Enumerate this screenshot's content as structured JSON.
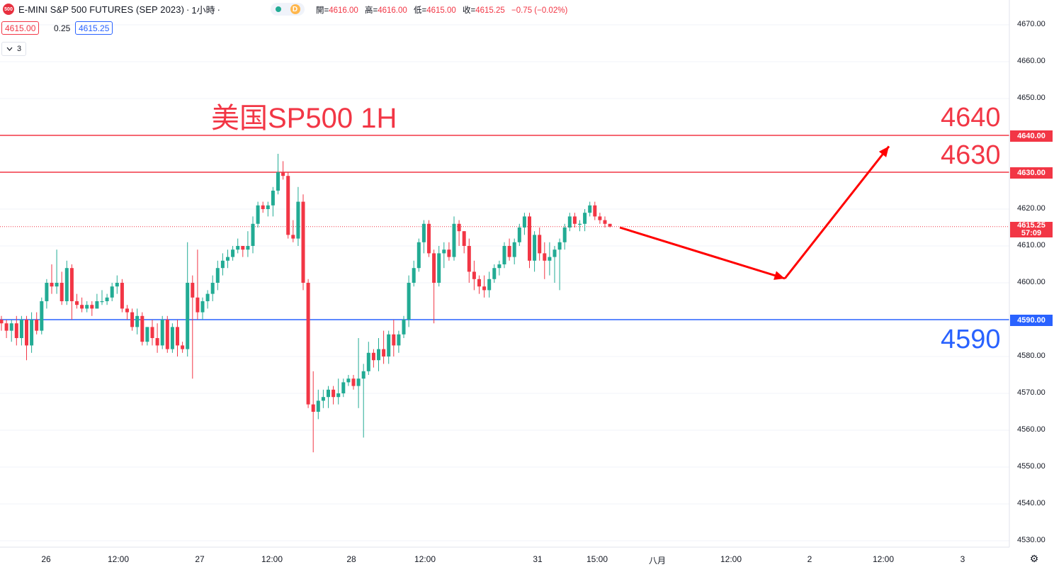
{
  "header": {
    "logo_text": "500",
    "symbol": "E-MINI S&P 500 FUTURES (SEP 2023)",
    "separator": "·",
    "interval": "1小時",
    "separator2": "·",
    "session_badge": "D",
    "ohlc": {
      "open_label": "開=",
      "open": "4616.00",
      "high_label": "高=",
      "high": "4616.00",
      "low_label": "低=",
      "low": "4615.00",
      "close_label": "收=",
      "close": "4615.25",
      "change": "−0.75 (−0.02%)"
    }
  },
  "trade": {
    "bid": "4615.00",
    "spread": "0.25",
    "ask": "4615.25"
  },
  "indicators_toggle": {
    "count": "3"
  },
  "annotations": {
    "title": "美国SP500 1H",
    "level_4640": "4640",
    "level_4630": "4630",
    "level_4590": "4590"
  },
  "price_axis": {
    "labels": [
      "4670.00",
      "4660.00",
      "4650.00",
      "4640.00",
      "4630.00",
      "4620.00",
      "4610.00",
      "4600.00",
      "4590.00",
      "4580.00",
      "4570.00",
      "4560.00",
      "4550.00",
      "4540.00",
      "4530.00"
    ],
    "tag_4640": "4640.00",
    "tag_4630": "4630.00",
    "tag_4590": "4590.00",
    "tag_last_price": "4615.25",
    "tag_countdown": "57:09"
  },
  "time_axis": {
    "labels": [
      "26",
      "12:00",
      "27",
      "12:00",
      "28",
      "12:00",
      "31",
      "15:00",
      "八月",
      "12:00",
      "2",
      "12:00",
      "3"
    ]
  },
  "colors": {
    "up": "#22ab94",
    "down": "#f23645",
    "resistance": "#f23645",
    "support": "#2962ff",
    "arrow": "#ff0000"
  },
  "chart_data": {
    "type": "candlestick",
    "y_range": [
      4527,
      4674
    ],
    "horizontal_lines": [
      4640,
      4630,
      4590
    ],
    "last_price": 4615.25,
    "candles": [
      [
        4590,
        4591,
        4587,
        4589
      ],
      [
        4589,
        4590,
        4585,
        4587
      ],
      [
        4587,
        4590,
        4584,
        4589
      ],
      [
        4589,
        4591,
        4583,
        4585
      ],
      [
        4585,
        4591,
        4583,
        4590
      ],
      [
        4590,
        4591,
        4579,
        4583
      ],
      [
        4583,
        4592,
        4581,
        4590
      ],
      [
        4590,
        4592,
        4586,
        4587
      ],
      [
        4587,
        4596,
        4586,
        4595
      ],
      [
        4595,
        4601,
        4593,
        4600
      ],
      [
        4600,
        4605,
        4597,
        4599
      ],
      [
        4599,
        4609,
        4597,
        4600
      ],
      [
        4600,
        4603,
        4594,
        4595
      ],
      [
        4595,
        4606,
        4594,
        4604
      ],
      [
        4604,
        4605,
        4590,
        4595
      ],
      [
        4595,
        4597,
        4593,
        4594
      ],
      [
        4594,
        4596,
        4592,
        4593
      ],
      [
        4593,
        4595,
        4592,
        4594
      ],
      [
        4594,
        4595,
        4591,
        4593
      ],
      [
        4593,
        4597,
        4593,
        4595
      ],
      [
        4595,
        4598,
        4594,
        4595
      ],
      [
        4595,
        4597,
        4594,
        4596
      ],
      [
        4596,
        4600,
        4595,
        4599
      ],
      [
        4599,
        4602,
        4597,
        4600
      ],
      [
        4600,
        4601,
        4592,
        4593
      ],
      [
        4593,
        4594,
        4590,
        4592
      ],
      [
        4592,
        4593,
        4587,
        4588
      ],
      [
        4588,
        4593,
        4586,
        4591
      ],
      [
        4591,
        4592,
        4583,
        4584
      ],
      [
        4584,
        4588,
        4583,
        4588
      ],
      [
        4588,
        4590,
        4583,
        4585
      ],
      [
        4585,
        4589,
        4581,
        4583
      ],
      [
        4583,
        4591,
        4582,
        4590
      ],
      [
        4590,
        4591,
        4581,
        4582
      ],
      [
        4582,
        4589,
        4581,
        4588
      ],
      [
        4588,
        4590,
        4580,
        4583
      ],
      [
        4583,
        4584,
        4581,
        4582
      ],
      [
        4582,
        4611,
        4580,
        4600
      ],
      [
        4600,
        4602,
        4574,
        4596
      ],
      [
        4596,
        4609,
        4590,
        4592
      ],
      [
        4592,
        4596,
        4590,
        4595
      ],
      [
        4595,
        4598,
        4593,
        4597
      ],
      [
        4597,
        4602,
        4595,
        4600
      ],
      [
        4600,
        4606,
        4598,
        4604
      ],
      [
        4604,
        4608,
        4602,
        4606
      ],
      [
        4606,
        4609,
        4604,
        4607
      ],
      [
        4607,
        4610,
        4606,
        4609
      ],
      [
        4609,
        4612,
        4608,
        4610
      ],
      [
        4610,
        4610,
        4607,
        4609
      ],
      [
        4609,
        4614,
        4607,
        4610
      ],
      [
        4610,
        4618,
        4608,
        4616
      ],
      [
        4616,
        4622,
        4615,
        4621
      ],
      [
        4621,
        4622,
        4619,
        4620
      ],
      [
        4620,
        4622,
        4618,
        4621
      ],
      [
        4621,
        4626,
        4618,
        4625
      ],
      [
        4625,
        4635,
        4624,
        4630
      ],
      [
        4630,
        4633,
        4628,
        4629
      ],
      [
        4629,
        4630,
        4612,
        4613
      ],
      [
        4613,
        4617,
        4611,
        4612
      ],
      [
        4612,
        4626,
        4610,
        4622
      ],
      [
        4622,
        4624,
        4598,
        4600
      ],
      [
        4600,
        4601,
        4566,
        4567
      ],
      [
        4567,
        4576,
        4554,
        4565
      ],
      [
        4565,
        4571,
        4563,
        4568
      ],
      [
        4568,
        4571,
        4566,
        4569
      ],
      [
        4569,
        4572,
        4566,
        4571
      ],
      [
        4571,
        4572,
        4567,
        4569
      ],
      [
        4569,
        4574,
        4567,
        4570
      ],
      [
        4570,
        4574,
        4569,
        4573
      ],
      [
        4573,
        4575,
        4572,
        4574
      ],
      [
        4574,
        4575,
        4571,
        4572
      ],
      [
        4572,
        4585,
        4566,
        4574
      ],
      [
        4574,
        4578,
        4558,
        4576
      ],
      [
        4576,
        4584,
        4575,
        4581
      ],
      [
        4581,
        4582,
        4577,
        4579
      ],
      [
        4579,
        4585,
        4576,
        4582
      ],
      [
        4582,
        4587,
        4578,
        4580
      ],
      [
        4580,
        4587,
        4578,
        4586
      ],
      [
        4586,
        4590,
        4580,
        4583
      ],
      [
        4583,
        4587,
        4581,
        4586
      ],
      [
        4586,
        4591,
        4585,
        4590
      ],
      [
        4590,
        4602,
        4588,
        4600
      ],
      [
        4600,
        4606,
        4599,
        4604
      ],
      [
        4604,
        4612,
        4603,
        4611
      ],
      [
        4611,
        4617,
        4608,
        4616
      ],
      [
        4616,
        4617,
        4607,
        4608
      ],
      [
        4608,
        4609,
        4589,
        4600
      ],
      [
        4600,
        4610,
        4599,
        4608
      ],
      [
        4608,
        4611,
        4604,
        4609
      ],
      [
        4609,
        4611,
        4606,
        4607
      ],
      [
        4607,
        4618,
        4606,
        4616
      ],
      [
        4616,
        4617,
        4610,
        4614
      ],
      [
        4614,
        4614,
        4608,
        4610
      ],
      [
        4610,
        4612,
        4600,
        4603
      ],
      [
        4603,
        4606,
        4598,
        4601
      ],
      [
        4601,
        4602,
        4597,
        4599
      ],
      [
        4599,
        4602,
        4596,
        4598
      ],
      [
        4598,
        4603,
        4596,
        4601
      ],
      [
        4601,
        4605,
        4600,
        4604
      ],
      [
        4604,
        4606,
        4602,
        4605
      ],
      [
        4605,
        4611,
        4604,
        4610
      ],
      [
        4610,
        4612,
        4606,
        4607
      ],
      [
        4607,
        4612,
        4605,
        4611
      ],
      [
        4611,
        4616,
        4610,
        4615
      ],
      [
        4615,
        4619,
        4613,
        4618
      ],
      [
        4618,
        4619,
        4604,
        4606
      ],
      [
        4606,
        4614,
        4603,
        4613
      ],
      [
        4613,
        4615,
        4606,
        4608
      ],
      [
        4608,
        4611,
        4601,
        4606
      ],
      [
        4606,
        4611,
        4602,
        4607
      ],
      [
        4607,
        4610,
        4600,
        4609
      ],
      [
        4609,
        4612,
        4598,
        4611
      ],
      [
        4611,
        4616,
        4609,
        4615
      ],
      [
        4615,
        4619,
        4614,
        4618
      ],
      [
        4618,
        4619,
        4615,
        4616
      ],
      [
        4616,
        4617,
        4614,
        4616
      ],
      [
        4616,
        4620,
        4614,
        4619
      ],
      [
        4619,
        4622,
        4618,
        4621
      ],
      [
        4621,
        4622,
        4617,
        4618
      ],
      [
        4618,
        4619,
        4616,
        4617
      ],
      [
        4617,
        4618,
        4615,
        4616
      ],
      [
        4616,
        4616,
        4615,
        4615.25
      ]
    ],
    "forecast_path": [
      [
        4615,
        4600
      ],
      [
        4600,
        4638
      ]
    ]
  }
}
